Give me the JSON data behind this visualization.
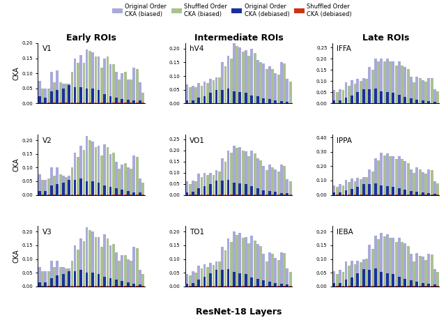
{
  "col_titles": [
    "Early ROIs",
    "Intermediate ROIs",
    "Late ROIs"
  ],
  "roi_grid": [
    [
      "V1",
      "hV4",
      "IFFA"
    ],
    [
      "V2",
      "VO1",
      "IPPA"
    ],
    [
      "V3",
      "TO1",
      "IEBA"
    ]
  ],
  "ylims_grid": [
    [
      [
        0,
        0.2
      ],
      [
        0,
        0.22
      ],
      [
        0,
        0.27
      ]
    ],
    [
      [
        0,
        0.22
      ],
      [
        0,
        0.27
      ],
      [
        0,
        0.42
      ]
    ],
    [
      [
        0,
        0.22
      ],
      [
        0,
        0.22
      ],
      [
        0,
        0.22
      ]
    ]
  ],
  "yticks_grid": [
    [
      [
        0,
        0.05,
        0.1,
        0.15,
        0.2
      ],
      [
        0,
        0.05,
        0.1,
        0.15,
        0.2
      ],
      [
        0,
        0.05,
        0.1,
        0.15,
        0.2,
        0.25
      ]
    ],
    [
      [
        0,
        0.05,
        0.1,
        0.15,
        0.2
      ],
      [
        0,
        0.05,
        0.1,
        0.15,
        0.2,
        0.25
      ],
      [
        0,
        0.1,
        0.2,
        0.3,
        0.4
      ]
    ],
    [
      [
        0,
        0.05,
        0.1,
        0.15,
        0.2
      ],
      [
        0,
        0.05,
        0.1,
        0.15,
        0.2
      ],
      [
        0,
        0.05,
        0.1,
        0.15,
        0.2
      ]
    ]
  ],
  "colors": {
    "original_biased": "#8888cc",
    "shuffled_biased": "#88aa66",
    "original_debiased": "#1a2f9e",
    "shuffled_debiased": "#cc3311"
  },
  "n_bars": 18,
  "data": {
    "V1": {
      "original_biased": [
        0.075,
        0.05,
        0.105,
        0.11,
        0.065,
        0.065,
        0.15,
        0.16,
        0.18,
        0.17,
        0.155,
        0.15,
        0.13,
        0.105,
        0.1,
        0.08,
        0.12,
        0.07
      ],
      "shuffled_biased": [
        0.05,
        0.05,
        0.07,
        0.07,
        0.065,
        0.105,
        0.135,
        0.135,
        0.175,
        0.155,
        0.12,
        0.155,
        0.13,
        0.08,
        0.105,
        0.08,
        0.115,
        0.035
      ],
      "original_debiased": [
        0.025,
        0.02,
        0.04,
        0.045,
        0.05,
        0.06,
        0.055,
        0.055,
        0.05,
        0.05,
        0.045,
        0.03,
        0.025,
        0.02,
        0.015,
        0.012,
        0.01,
        0.01
      ],
      "shuffled_debiased": [
        0.002,
        0.002,
        0.002,
        0.002,
        0.002,
        0.002,
        0.002,
        0.002,
        0.002,
        0.002,
        0.002,
        0.002,
        0.002,
        0.002,
        0.002,
        0.002,
        0.002,
        0.002
      ]
    },
    "V2": {
      "original_biased": [
        0.075,
        0.055,
        0.1,
        0.1,
        0.07,
        0.07,
        0.155,
        0.18,
        0.215,
        0.195,
        0.18,
        0.185,
        0.15,
        0.12,
        0.11,
        0.1,
        0.145,
        0.06
      ],
      "shuffled_biased": [
        0.055,
        0.06,
        0.07,
        0.075,
        0.065,
        0.1,
        0.14,
        0.165,
        0.2,
        0.175,
        0.145,
        0.175,
        0.155,
        0.095,
        0.115,
        0.095,
        0.14,
        0.045
      ],
      "original_debiased": [
        0.015,
        0.015,
        0.035,
        0.04,
        0.045,
        0.055,
        0.055,
        0.06,
        0.05,
        0.05,
        0.045,
        0.035,
        0.03,
        0.025,
        0.02,
        0.015,
        0.01,
        0.008
      ],
      "shuffled_debiased": [
        0.002,
        0.002,
        0.002,
        0.002,
        0.002,
        0.002,
        0.002,
        0.002,
        0.002,
        0.002,
        0.002,
        0.002,
        0.002,
        0.002,
        0.002,
        0.002,
        0.002,
        0.002
      ]
    },
    "V3": {
      "original_biased": [
        0.07,
        0.055,
        0.095,
        0.095,
        0.07,
        0.065,
        0.15,
        0.175,
        0.215,
        0.2,
        0.18,
        0.19,
        0.15,
        0.125,
        0.115,
        0.1,
        0.145,
        0.06
      ],
      "shuffled_biased": [
        0.055,
        0.055,
        0.07,
        0.07,
        0.065,
        0.095,
        0.135,
        0.165,
        0.205,
        0.18,
        0.145,
        0.175,
        0.155,
        0.095,
        0.115,
        0.095,
        0.14,
        0.045
      ],
      "original_debiased": [
        0.015,
        0.015,
        0.03,
        0.04,
        0.045,
        0.055,
        0.055,
        0.06,
        0.05,
        0.05,
        0.045,
        0.035,
        0.03,
        0.025,
        0.02,
        0.015,
        0.01,
        0.008
      ],
      "shuffled_debiased": [
        0.002,
        0.002,
        0.002,
        0.002,
        0.002,
        0.002,
        0.002,
        0.002,
        0.002,
        0.002,
        0.002,
        0.002,
        0.002,
        0.002,
        0.002,
        0.002,
        0.002,
        0.002
      ]
    },
    "hV4": {
      "original_biased": [
        0.07,
        0.065,
        0.075,
        0.08,
        0.09,
        0.095,
        0.15,
        0.175,
        0.22,
        0.205,
        0.195,
        0.2,
        0.16,
        0.145,
        0.135,
        0.11,
        0.15,
        0.09
      ],
      "shuffled_biased": [
        0.06,
        0.06,
        0.065,
        0.075,
        0.085,
        0.095,
        0.135,
        0.165,
        0.21,
        0.19,
        0.175,
        0.185,
        0.15,
        0.125,
        0.125,
        0.105,
        0.145,
        0.08
      ],
      "original_debiased": [
        0.01,
        0.012,
        0.02,
        0.025,
        0.038,
        0.05,
        0.05,
        0.055,
        0.045,
        0.042,
        0.038,
        0.03,
        0.025,
        0.018,
        0.015,
        0.012,
        0.008,
        0.007
      ],
      "shuffled_debiased": [
        0.002,
        0.002,
        0.002,
        0.002,
        0.002,
        0.002,
        0.002,
        0.002,
        0.002,
        0.002,
        0.002,
        0.002,
        0.002,
        0.002,
        0.002,
        0.002,
        0.002,
        0.002
      ]
    },
    "VO1": {
      "original_biased": [
        0.06,
        0.065,
        0.095,
        0.1,
        0.1,
        0.11,
        0.165,
        0.2,
        0.22,
        0.215,
        0.195,
        0.2,
        0.165,
        0.13,
        0.135,
        0.115,
        0.135,
        0.07
      ],
      "shuffled_biased": [
        0.05,
        0.06,
        0.08,
        0.09,
        0.09,
        0.105,
        0.15,
        0.19,
        0.21,
        0.2,
        0.175,
        0.185,
        0.155,
        0.11,
        0.125,
        0.105,
        0.13,
        0.06
      ],
      "original_debiased": [
        0.012,
        0.015,
        0.03,
        0.04,
        0.05,
        0.065,
        0.065,
        0.068,
        0.055,
        0.052,
        0.048,
        0.038,
        0.03,
        0.022,
        0.018,
        0.013,
        0.009,
        0.007
      ],
      "shuffled_debiased": [
        0.002,
        0.002,
        0.002,
        0.002,
        0.002,
        0.002,
        0.002,
        0.002,
        0.002,
        0.002,
        0.002,
        0.002,
        0.002,
        0.002,
        0.002,
        0.002,
        0.002,
        0.002
      ]
    },
    "TO1": {
      "original_biased": [
        0.045,
        0.055,
        0.075,
        0.08,
        0.085,
        0.09,
        0.145,
        0.175,
        0.2,
        0.195,
        0.18,
        0.185,
        0.155,
        0.12,
        0.125,
        0.105,
        0.125,
        0.065
      ],
      "shuffled_biased": [
        0.04,
        0.05,
        0.065,
        0.07,
        0.078,
        0.09,
        0.132,
        0.162,
        0.188,
        0.178,
        0.158,
        0.168,
        0.148,
        0.092,
        0.118,
        0.097,
        0.122,
        0.052
      ],
      "original_debiased": [
        0.01,
        0.012,
        0.025,
        0.035,
        0.048,
        0.06,
        0.06,
        0.062,
        0.052,
        0.048,
        0.045,
        0.033,
        0.028,
        0.022,
        0.018,
        0.013,
        0.009,
        0.007
      ],
      "shuffled_debiased": [
        0.002,
        0.002,
        0.002,
        0.002,
        0.002,
        0.002,
        0.002,
        0.002,
        0.002,
        0.002,
        0.002,
        0.002,
        0.002,
        0.002,
        0.002,
        0.002,
        0.002,
        0.002
      ]
    },
    "IFFA": {
      "original_biased": [
        0.06,
        0.065,
        0.095,
        0.105,
        0.11,
        0.115,
        0.165,
        0.2,
        0.2,
        0.2,
        0.19,
        0.19,
        0.165,
        0.12,
        0.12,
        0.105,
        0.115,
        0.065
      ],
      "shuffled_biased": [
        0.05,
        0.06,
        0.08,
        0.09,
        0.1,
        0.11,
        0.15,
        0.188,
        0.19,
        0.188,
        0.17,
        0.17,
        0.155,
        0.095,
        0.115,
        0.098,
        0.112,
        0.055
      ],
      "original_debiased": [
        0.012,
        0.015,
        0.025,
        0.035,
        0.05,
        0.065,
        0.065,
        0.068,
        0.055,
        0.052,
        0.048,
        0.038,
        0.03,
        0.022,
        0.018,
        0.013,
        0.009,
        0.007
      ],
      "shuffled_debiased": [
        0.002,
        0.002,
        0.002,
        0.002,
        0.002,
        0.002,
        0.002,
        0.002,
        0.002,
        0.002,
        0.002,
        0.002,
        0.002,
        0.002,
        0.002,
        0.002,
        0.002,
        0.002
      ]
    },
    "IPPA": {
      "original_biased": [
        0.065,
        0.075,
        0.105,
        0.115,
        0.12,
        0.125,
        0.18,
        0.255,
        0.295,
        0.29,
        0.27,
        0.27,
        0.235,
        0.18,
        0.19,
        0.16,
        0.18,
        0.095
      ],
      "shuffled_biased": [
        0.055,
        0.065,
        0.09,
        0.095,
        0.108,
        0.122,
        0.165,
        0.24,
        0.275,
        0.27,
        0.25,
        0.25,
        0.22,
        0.155,
        0.178,
        0.148,
        0.172,
        0.082
      ],
      "original_debiased": [
        0.015,
        0.018,
        0.03,
        0.04,
        0.055,
        0.075,
        0.075,
        0.08,
        0.065,
        0.06,
        0.058,
        0.045,
        0.035,
        0.028,
        0.022,
        0.018,
        0.012,
        0.009
      ],
      "shuffled_debiased": [
        0.002,
        0.002,
        0.002,
        0.002,
        0.002,
        0.002,
        0.002,
        0.002,
        0.002,
        0.002,
        0.002,
        0.002,
        0.002,
        0.002,
        0.002,
        0.002,
        0.002,
        0.002
      ]
    },
    "IEBA": {
      "original_biased": [
        0.055,
        0.06,
        0.09,
        0.095,
        0.095,
        0.1,
        0.152,
        0.185,
        0.195,
        0.19,
        0.178,
        0.178,
        0.158,
        0.118,
        0.122,
        0.108,
        0.118,
        0.062
      ],
      "shuffled_biased": [
        0.046,
        0.052,
        0.076,
        0.082,
        0.088,
        0.102,
        0.138,
        0.172,
        0.182,
        0.178,
        0.162,
        0.162,
        0.148,
        0.092,
        0.112,
        0.097,
        0.117,
        0.052
      ],
      "original_debiased": [
        0.012,
        0.013,
        0.025,
        0.033,
        0.048,
        0.062,
        0.06,
        0.065,
        0.052,
        0.048,
        0.045,
        0.035,
        0.028,
        0.022,
        0.018,
        0.013,
        0.009,
        0.007
      ],
      "shuffled_debiased": [
        0.002,
        0.002,
        0.002,
        0.002,
        0.002,
        0.002,
        0.002,
        0.002,
        0.002,
        0.002,
        0.002,
        0.002,
        0.002,
        0.002,
        0.002,
        0.002,
        0.002,
        0.002
      ]
    }
  },
  "xlabel": "ResNet-18 Layers",
  "ylabel": "CKA",
  "alpha_biased": 0.72
}
